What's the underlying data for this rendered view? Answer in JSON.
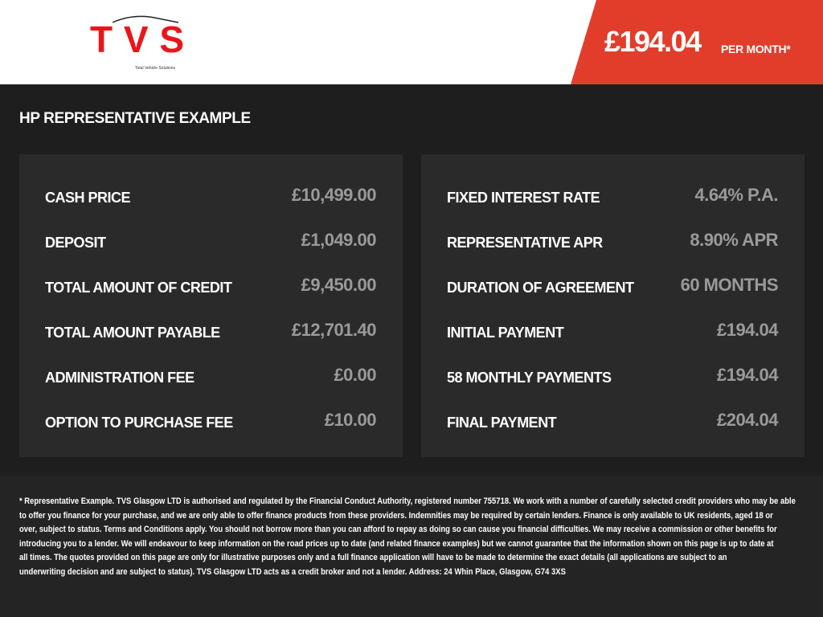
{
  "brand": {
    "logo_text": "TVS",
    "logo_tagline": "Total Vehicle Solutions",
    "accent": "#e23d2b"
  },
  "header": {
    "price": "£194.04",
    "per_month": "PER MONTH*"
  },
  "section_title": "HP REPRESENTATIVE EXAMPLE",
  "left_rows": [
    {
      "label": "CASH PRICE",
      "value": "£10,499.00"
    },
    {
      "label": "DEPOSIT",
      "value": "£1,049.00"
    },
    {
      "label": "TOTAL AMOUNT OF CREDIT",
      "value": "£9,450.00"
    },
    {
      "label": "TOTAL AMOUNT PAYABLE",
      "value": "£12,701.40"
    },
    {
      "label": "ADMINISTRATION FEE",
      "value": "£0.00"
    },
    {
      "label": "OPTION TO PURCHASE FEE",
      "value": "£10.00"
    }
  ],
  "right_rows": [
    {
      "label": "FIXED INTEREST RATE",
      "value": "4.64% P.A."
    },
    {
      "label": "REPRESENTATIVE APR",
      "value": "8.90% APR"
    },
    {
      "label": "DURATION OF AGREEMENT",
      "value": "60 MONTHS"
    },
    {
      "label": "INITIAL PAYMENT",
      "value": "£194.04"
    },
    {
      "label": "58 MONTHLY PAYMENTS",
      "value": "£194.04"
    },
    {
      "label": "FINAL PAYMENT",
      "value": "£204.04"
    }
  ],
  "disclaimer_lines": [
    "* Representative Example. TVS Glasgow LTD is authorised and regulated by the Financial Conduct Authority, registered number 755718. We work with a number of carefully selected credit providers who may be able",
    "to offer you finance for your purchase, and we are only able to offer finance products from these providers. Indemnities may be required by certain lenders. Finance is only available to UK residents, aged 18 or",
    "over, subject to status. Terms and Conditions apply. You should not borrow more than you can afford to repay as doing so can cause you financial difficulties. We may receive a commission or other benefits for",
    "introducing you to a lender. We will endeavour to keep information on the road prices up to date (and related finance examples) but we cannot guarantee that the information shown on this page is up to date at",
    "all times. The quotes provided on this page are only for illustrative purposes only and a full finance application will have to be made to determine the exact details (all applications are subject to an",
    "underwriting decision and are subject to status). TVS Glasgow LTD acts as a credit broker and not a lender. Address:  24 Whin Place, Glasgow, G74 3XS"
  ]
}
